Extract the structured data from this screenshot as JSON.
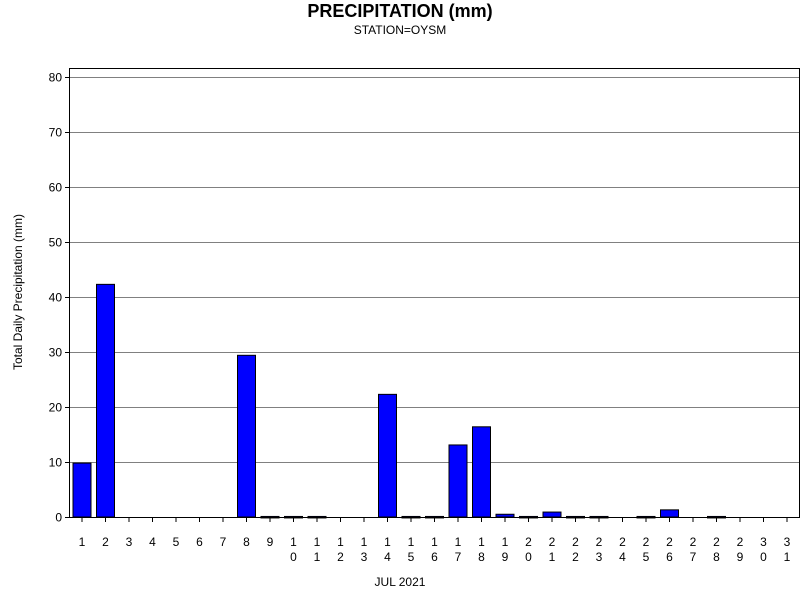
{
  "chart_data": {
    "type": "bar",
    "title": "PRECIPITATION (mm)",
    "subtitle": "STATION=OYSM",
    "xlabel": "JUL 2021",
    "ylabel": "Total Daily Precipitation (mm)",
    "categories": [
      "1",
      "2",
      "3",
      "4",
      "5",
      "6",
      "7",
      "8",
      "9",
      "10",
      "11",
      "12",
      "13",
      "14",
      "15",
      "16",
      "17",
      "18",
      "19",
      "20",
      "21",
      "22",
      "23",
      "24",
      "25",
      "26",
      "27",
      "28",
      "29",
      "30",
      "31"
    ],
    "values": [
      9.8,
      42.3,
      0,
      0,
      0,
      0,
      0,
      29.4,
      0.1,
      0.1,
      0.1,
      0,
      0,
      22.3,
      0.1,
      0.1,
      13.1,
      16.4,
      0.5,
      0.1,
      0.9,
      0.1,
      0.1,
      0,
      0.1,
      1.3,
      0,
      0.1,
      0,
      0,
      0
    ],
    "ylim": [
      0,
      80
    ],
    "yticks": [
      0,
      10,
      20,
      30,
      40,
      50,
      60,
      70,
      80
    ],
    "grid": true,
    "colors": {
      "bar": "#0000ff",
      "bar_edge": "#000000",
      "grid": "#808080"
    }
  }
}
